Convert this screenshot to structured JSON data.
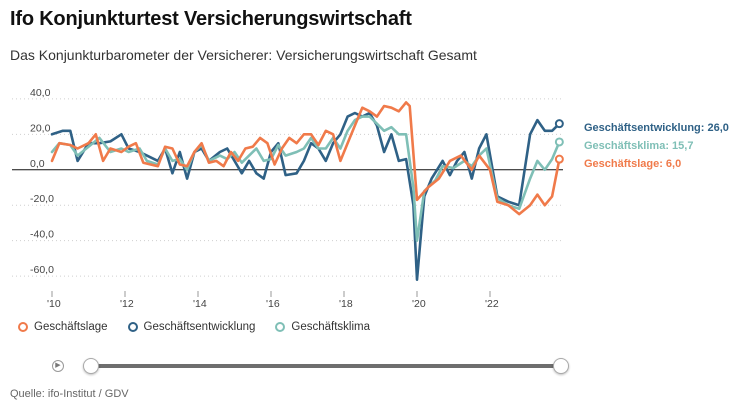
{
  "header": {
    "title": "Ifo Konjunkturtest Versicherungswirtschaft",
    "subtitle": "Das Konjunkturbarometer der Versicherer: Versicherungswirtschaft Gesamt"
  },
  "footer": {
    "source": "Quelle: ifo-Institut / GDV"
  },
  "legend": [
    {
      "label": "Geschäftslage",
      "color": "#f07a4a"
    },
    {
      "label": "Geschäftsentwicklung",
      "color": "#2f6186"
    },
    {
      "label": "Geschäftsklima",
      "color": "#7fbfb6"
    }
  ],
  "slider": {
    "play_icon": "play-icon",
    "range": "full"
  },
  "chart_data": {
    "type": "line",
    "title": "Ifo Konjunkturtest Versicherungswirtschaft",
    "subtitle": "Das Konjunkturbarometer der Versicherer: Versicherungswirtschaft Gesamt",
    "xlabel": "",
    "ylabel": "",
    "x_ticks": [
      "'10",
      "'12",
      "'14",
      "'16",
      "'18",
      "'20",
      "'22"
    ],
    "y_ticks": [
      "40,0",
      "20,0",
      "0,0",
      "-20,0",
      "-40,0",
      "-60,0"
    ],
    "xlim": [
      2010,
      2024
    ],
    "ylim": [
      -65,
      45
    ],
    "grid": "horizontal dotted",
    "legend_position": "bottom",
    "series": [
      {
        "name": "Geschäftslage",
        "color": "#f07a4a",
        "end_label": "Geschäftslage: 6,0",
        "points": [
          [
            2010.0,
            5
          ],
          [
            2010.2,
            15
          ],
          [
            2010.5,
            14
          ],
          [
            2010.7,
            12
          ],
          [
            2011.0,
            15
          ],
          [
            2011.2,
            20
          ],
          [
            2011.4,
            5
          ],
          [
            2011.6,
            12
          ],
          [
            2011.9,
            10
          ],
          [
            2012.1,
            13
          ],
          [
            2012.3,
            15
          ],
          [
            2012.5,
            4
          ],
          [
            2012.7,
            3
          ],
          [
            2012.9,
            2
          ],
          [
            2013.1,
            13
          ],
          [
            2013.3,
            12
          ],
          [
            2013.5,
            3
          ],
          [
            2013.7,
            2
          ],
          [
            2013.9,
            10
          ],
          [
            2014.1,
            15
          ],
          [
            2014.3,
            4
          ],
          [
            2014.5,
            5
          ],
          [
            2014.7,
            2
          ],
          [
            2014.9,
            10
          ],
          [
            2015.1,
            5
          ],
          [
            2015.3,
            12
          ],
          [
            2015.5,
            13
          ],
          [
            2015.7,
            18
          ],
          [
            2015.9,
            15
          ],
          [
            2016.1,
            3
          ],
          [
            2016.3,
            12
          ],
          [
            2016.5,
            18
          ],
          [
            2016.7,
            15
          ],
          [
            2016.9,
            20
          ],
          [
            2017.1,
            20
          ],
          [
            2017.3,
            14
          ],
          [
            2017.5,
            22
          ],
          [
            2017.7,
            20
          ],
          [
            2017.9,
            5
          ],
          [
            2018.1,
            15
          ],
          [
            2018.3,
            25
          ],
          [
            2018.5,
            35
          ],
          [
            2018.7,
            33
          ],
          [
            2018.9,
            30
          ],
          [
            2019.1,
            36
          ],
          [
            2019.3,
            35
          ],
          [
            2019.5,
            33
          ],
          [
            2019.7,
            38
          ],
          [
            2019.8,
            36
          ],
          [
            2020.0,
            -17
          ],
          [
            2020.3,
            -10
          ],
          [
            2020.6,
            -5
          ],
          [
            2020.9,
            5
          ],
          [
            2021.2,
            8
          ],
          [
            2021.5,
            0
          ],
          [
            2021.7,
            8
          ],
          [
            2022.0,
            0
          ],
          [
            2022.2,
            -18
          ],
          [
            2022.5,
            -20
          ],
          [
            2022.8,
            -25
          ],
          [
            2023.1,
            -20
          ],
          [
            2023.3,
            -14
          ],
          [
            2023.5,
            -20
          ],
          [
            2023.7,
            -15
          ],
          [
            2023.9,
            6
          ]
        ]
      },
      {
        "name": "Geschäftsentwicklung",
        "color": "#2f6186",
        "end_label": "Geschäftsentwicklung: 26,0",
        "points": [
          [
            2010.0,
            20
          ],
          [
            2010.3,
            22
          ],
          [
            2010.5,
            22
          ],
          [
            2010.7,
            5
          ],
          [
            2011.0,
            15
          ],
          [
            2011.3,
            15
          ],
          [
            2011.6,
            16
          ],
          [
            2011.9,
            20
          ],
          [
            2012.1,
            12
          ],
          [
            2012.4,
            10
          ],
          [
            2012.6,
            8
          ],
          [
            2012.9,
            5
          ],
          [
            2013.1,
            12
          ],
          [
            2013.3,
            -2
          ],
          [
            2013.5,
            10
          ],
          [
            2013.7,
            -5
          ],
          [
            2013.9,
            10
          ],
          [
            2014.1,
            12
          ],
          [
            2014.3,
            5
          ],
          [
            2014.6,
            10
          ],
          [
            2014.8,
            12
          ],
          [
            2015.0,
            5
          ],
          [
            2015.2,
            -2
          ],
          [
            2015.4,
            5
          ],
          [
            2015.6,
            -2
          ],
          [
            2015.8,
            -5
          ],
          [
            2016.0,
            10
          ],
          [
            2016.2,
            15
          ],
          [
            2016.4,
            -3
          ],
          [
            2016.7,
            -2
          ],
          [
            2016.9,
            5
          ],
          [
            2017.1,
            15
          ],
          [
            2017.3,
            12
          ],
          [
            2017.5,
            5
          ],
          [
            2017.7,
            15
          ],
          [
            2017.9,
            20
          ],
          [
            2018.1,
            30
          ],
          [
            2018.3,
            32
          ],
          [
            2018.5,
            30
          ],
          [
            2018.7,
            32
          ],
          [
            2018.9,
            25
          ],
          [
            2019.1,
            10
          ],
          [
            2019.3,
            20
          ],
          [
            2019.5,
            5
          ],
          [
            2019.7,
            6
          ],
          [
            2019.9,
            -20
          ],
          [
            2020.0,
            -62
          ],
          [
            2020.2,
            -15
          ],
          [
            2020.4,
            -5
          ],
          [
            2020.7,
            5
          ],
          [
            2020.9,
            -3
          ],
          [
            2021.1,
            5
          ],
          [
            2021.3,
            10
          ],
          [
            2021.5,
            -5
          ],
          [
            2021.7,
            12
          ],
          [
            2021.9,
            20
          ],
          [
            2022.2,
            -15
          ],
          [
            2022.5,
            -18
          ],
          [
            2022.8,
            -20
          ],
          [
            2023.1,
            20
          ],
          [
            2023.3,
            28
          ],
          [
            2023.5,
            22
          ],
          [
            2023.7,
            22
          ],
          [
            2023.9,
            26
          ]
        ]
      },
      {
        "name": "Geschäftsklima",
        "color": "#7fbfb6",
        "end_label": "Geschäftsklima: 15,7",
        "points": [
          [
            2010.0,
            10
          ],
          [
            2010.2,
            15
          ],
          [
            2010.5,
            14
          ],
          [
            2010.7,
            8
          ],
          [
            2011.0,
            13
          ],
          [
            2011.3,
            18
          ],
          [
            2011.6,
            10
          ],
          [
            2011.9,
            12
          ],
          [
            2012.1,
            10
          ],
          [
            2012.4,
            12
          ],
          [
            2012.6,
            5
          ],
          [
            2012.9,
            3
          ],
          [
            2013.1,
            12
          ],
          [
            2013.3,
            5
          ],
          [
            2013.5,
            6
          ],
          [
            2013.7,
            0
          ],
          [
            2013.9,
            10
          ],
          [
            2014.1,
            14
          ],
          [
            2014.3,
            5
          ],
          [
            2014.6,
            8
          ],
          [
            2014.8,
            6
          ],
          [
            2015.0,
            10
          ],
          [
            2015.2,
            4
          ],
          [
            2015.4,
            8
          ],
          [
            2015.6,
            12
          ],
          [
            2015.8,
            5
          ],
          [
            2016.0,
            6
          ],
          [
            2016.2,
            14
          ],
          [
            2016.4,
            8
          ],
          [
            2016.7,
            10
          ],
          [
            2016.9,
            12
          ],
          [
            2017.1,
            18
          ],
          [
            2017.3,
            12
          ],
          [
            2017.5,
            12
          ],
          [
            2017.7,
            18
          ],
          [
            2017.9,
            12
          ],
          [
            2018.1,
            22
          ],
          [
            2018.3,
            28
          ],
          [
            2018.5,
            30
          ],
          [
            2018.7,
            30
          ],
          [
            2018.9,
            26
          ],
          [
            2019.1,
            22
          ],
          [
            2019.3,
            24
          ],
          [
            2019.5,
            20
          ],
          [
            2019.7,
            20
          ],
          [
            2019.9,
            -10
          ],
          [
            2020.0,
            -40
          ],
          [
            2020.2,
            -12
          ],
          [
            2020.5,
            -6
          ],
          [
            2020.7,
            2
          ],
          [
            2021.0,
            1
          ],
          [
            2021.3,
            5
          ],
          [
            2021.5,
            2
          ],
          [
            2021.7,
            8
          ],
          [
            2021.9,
            12
          ],
          [
            2022.2,
            -16
          ],
          [
            2022.5,
            -20
          ],
          [
            2022.8,
            -22
          ],
          [
            2023.1,
            -5
          ],
          [
            2023.3,
            5
          ],
          [
            2023.5,
            0
          ],
          [
            2023.7,
            6
          ],
          [
            2023.9,
            15.7
          ]
        ]
      }
    ]
  }
}
